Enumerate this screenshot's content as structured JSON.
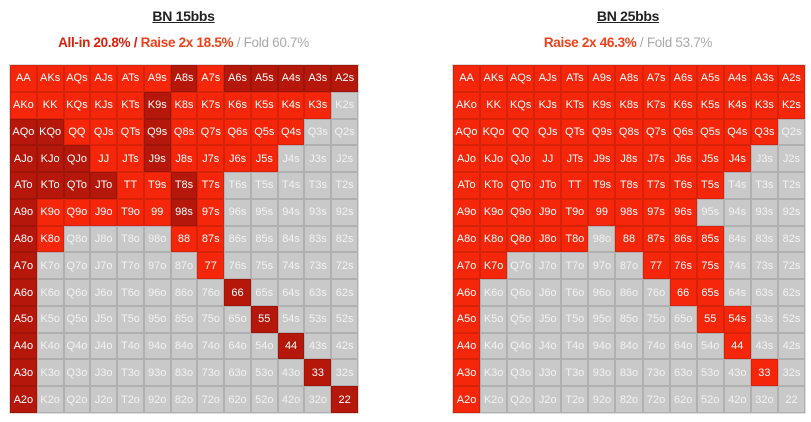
{
  "hands": [
    [
      "AA",
      "AKs",
      "AQs",
      "AJs",
      "ATs",
      "A9s",
      "A8s",
      "A7s",
      "A6s",
      "A5s",
      "A4s",
      "A3s",
      "A2s"
    ],
    [
      "AKo",
      "KK",
      "KQs",
      "KJs",
      "KTs",
      "K9s",
      "K8s",
      "K7s",
      "K6s",
      "K5s",
      "K4s",
      "K3s",
      "K2s"
    ],
    [
      "AQo",
      "KQo",
      "QQ",
      "QJs",
      "QTs",
      "Q9s",
      "Q8s",
      "Q7s",
      "Q6s",
      "Q5s",
      "Q4s",
      "Q3s",
      "Q2s"
    ],
    [
      "AJo",
      "KJo",
      "QJo",
      "JJ",
      "JTs",
      "J9s",
      "J8s",
      "J7s",
      "J6s",
      "J5s",
      "J4s",
      "J3s",
      "J2s"
    ],
    [
      "ATo",
      "KTo",
      "QTo",
      "JTo",
      "TT",
      "T9s",
      "T8s",
      "T7s",
      "T6s",
      "T5s",
      "T4s",
      "T3s",
      "T2s"
    ],
    [
      "A9o",
      "K9o",
      "Q9o",
      "J9o",
      "T9o",
      "99",
      "98s",
      "97s",
      "96s",
      "95s",
      "94s",
      "93s",
      "92s"
    ],
    [
      "A8o",
      "K8o",
      "Q8o",
      "J8o",
      "T8o",
      "98o",
      "88",
      "87s",
      "86s",
      "85s",
      "84s",
      "83s",
      "82s"
    ],
    [
      "A7o",
      "K7o",
      "Q7o",
      "J7o",
      "T7o",
      "97o",
      "87o",
      "77",
      "76s",
      "75s",
      "74s",
      "73s",
      "72s"
    ],
    [
      "A6o",
      "K6o",
      "Q6o",
      "J6o",
      "T6o",
      "96o",
      "86o",
      "76o",
      "66",
      "65s",
      "64s",
      "63s",
      "62s"
    ],
    [
      "A5o",
      "K5o",
      "Q5o",
      "J5o",
      "T5o",
      "95o",
      "85o",
      "75o",
      "65o",
      "55",
      "54s",
      "53s",
      "52s"
    ],
    [
      "A4o",
      "K4o",
      "Q4o",
      "J4o",
      "T4o",
      "94o",
      "84o",
      "74o",
      "64o",
      "54o",
      "44",
      "43s",
      "42s"
    ],
    [
      "A3o",
      "K3o",
      "Q3o",
      "J3o",
      "T3o",
      "93o",
      "83o",
      "73o",
      "63o",
      "53o",
      "43o",
      "33",
      "32s"
    ],
    [
      "A2o",
      "K2o",
      "Q2o",
      "J2o",
      "T2o",
      "92o",
      "82o",
      "72o",
      "62o",
      "52o",
      "42o",
      "32o",
      "22"
    ]
  ],
  "colors": {
    "D": "#b5170b",
    "R": "#f5260a",
    "F": "#c9c9c9"
  },
  "legend_codes": {
    "D": "All-in",
    "R": "Raise 2x",
    "F": "Fold"
  },
  "chart_data": [
    {
      "type": "heatmap",
      "title": "BN 15bbs",
      "summary": {
        "allin": "All-in 20.8%",
        "raise": "Raise 2x 18.5%",
        "fold": "Fold 60.7%"
      },
      "actions": [
        "RRRRRRDRDDDDD",
        "RRRRRDRRRRRRF",
        "DDRRRDRRRRRFF",
        "DDDRRDRRRRFFF",
        "DDDDRRDRFFFFF",
        "DRRRRRDRFFFFF",
        "DRFFFFRRFFFFF",
        "DFFFFFFRFFFFF",
        "DFFFFFFFDFFFF",
        "DFFFFFFFFDFFF",
        "DFFFFFFFFFDFF",
        "DFFFFFFFFFFDF",
        "DFFFFFFFFFFFD"
      ]
    },
    {
      "type": "heatmap",
      "title": "BN 25bbs",
      "summary": {
        "raise": "Raise 2x 46.3%",
        "fold": "Fold 53.7%"
      },
      "actions": [
        "RRRRRRRRRRRRR",
        "RRRRRRRRRRRRR",
        "RRRRRRRRRRRRF",
        "RRRRRRRRRRRFF",
        "RRRRRRRRRRFFF",
        "RRRRRRRRRFFFF",
        "RRRRRFRRRRFFF",
        "RRFFFFFRRRFFF",
        "RFFFFFFFRRFFF",
        "RFFFFFFFFRRFF",
        "RFFFFFFFFFRFF",
        "RFFFFFFFFFFRF",
        "RFFFFFFFFFFFF"
      ]
    }
  ]
}
